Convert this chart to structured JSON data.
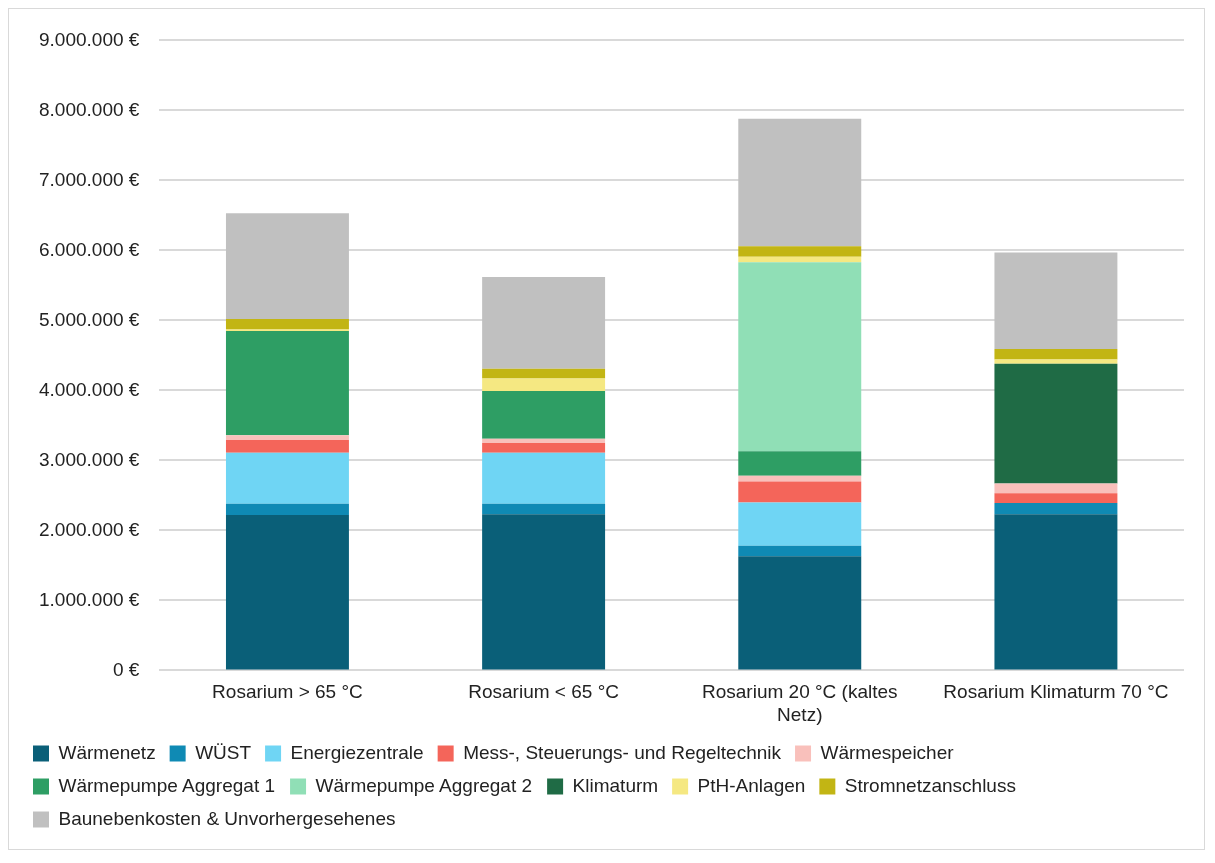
{
  "chart_data": {
    "type": "bar",
    "stacked": true,
    "categories": [
      "Rosarium > 65 °C",
      "Rosarium < 65 °C",
      "Rosarium 20 °C (kaltes Netz)",
      "Rosarium Klimaturm 70 °C"
    ],
    "series": [
      {
        "name": "Wärmenetz",
        "color": "#0a5f78",
        "values": [
          2220000,
          2230000,
          1630000,
          2230000
        ]
      },
      {
        "name": "WÜST",
        "color": "#0f8ab4",
        "values": [
          160000,
          150000,
          150000,
          160000
        ]
      },
      {
        "name": "Energiezentrale",
        "color": "#6fd5f4",
        "values": [
          730000,
          730000,
          620000,
          0
        ]
      },
      {
        "name": "Mess-, Steuerungs- und Regeltechnik",
        "color": "#f4655a",
        "values": [
          180000,
          140000,
          300000,
          140000
        ]
      },
      {
        "name": "Wärmespeicher",
        "color": "#f9c0bb",
        "values": [
          70000,
          60000,
          80000,
          140000
        ]
      },
      {
        "name": "Wärmepumpe Aggregat 1",
        "color": "#2e9e64",
        "values": [
          1490000,
          680000,
          350000,
          0
        ]
      },
      {
        "name": "Wärmepumpe Aggregat 2",
        "color": "#90dfb6",
        "values": [
          0,
          0,
          2700000,
          0
        ]
      },
      {
        "name": "Klimaturm",
        "color": "#1f6b45",
        "values": [
          0,
          0,
          0,
          1710000
        ]
      },
      {
        "name": "PtH-Anlagen",
        "color": "#f5e882",
        "values": [
          20000,
          180000,
          80000,
          60000
        ]
      },
      {
        "name": "Stromnetzanschluss",
        "color": "#c2b514",
        "values": [
          150000,
          140000,
          150000,
          150000
        ]
      },
      {
        "name": "Baunebenkosten & Unvorhergesehenes",
        "color": "#c0c0c0",
        "values": [
          1510000,
          1310000,
          1820000,
          1380000
        ]
      }
    ],
    "ylim": [
      0,
      9000000
    ],
    "yticks": [
      {
        "value": 0,
        "label": "0 €"
      },
      {
        "value": 1000000,
        "label": "1.000.000 €"
      },
      {
        "value": 2000000,
        "label": "2.000.000 €"
      },
      {
        "value": 3000000,
        "label": "3.000.000 €"
      },
      {
        "value": 4000000,
        "label": "4.000.000 €"
      },
      {
        "value": 5000000,
        "label": "5.000.000 €"
      },
      {
        "value": 6000000,
        "label": "6.000.000 €"
      },
      {
        "value": 7000000,
        "label": "7.000.000 €"
      },
      {
        "value": 8000000,
        "label": "8.000.000 €"
      },
      {
        "value": 9000000,
        "label": "9.000.000 €"
      }
    ],
    "grid": "y",
    "legend": "bottom"
  }
}
